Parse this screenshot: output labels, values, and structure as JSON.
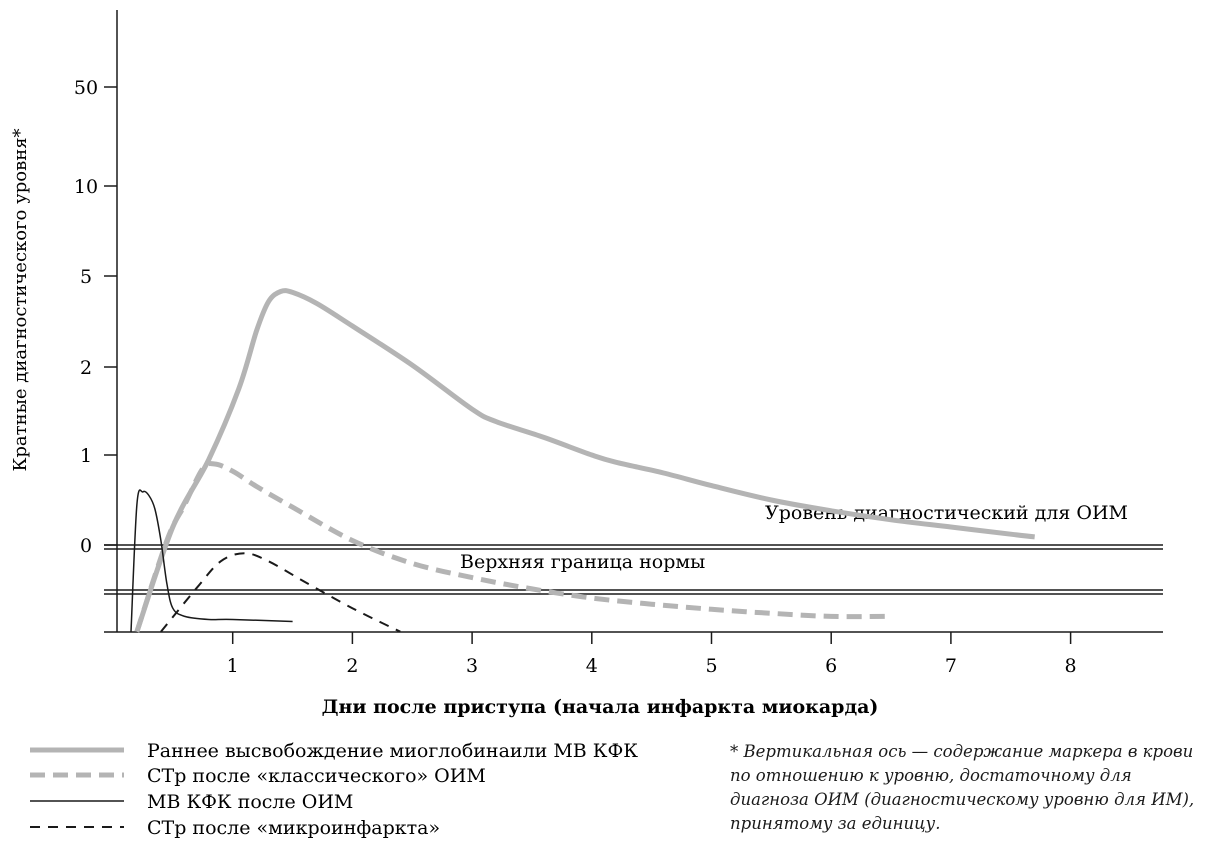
{
  "chart_data": {
    "type": "line",
    "xlabel": "Дни после приступа (начала инфаркта миокарда)",
    "ylabel": "Кратные диагностического уровня*",
    "x_ticks": [
      1,
      2,
      3,
      4,
      5,
      6,
      7,
      8
    ],
    "y_ticks": [
      "0",
      "1",
      "2",
      "5",
      "10",
      "50"
    ],
    "xlim": [
      0,
      8.75
    ],
    "reference_lines": [
      {
        "name": "Уровень диагностический для ОИМ",
        "y": "0"
      },
      {
        "name": "Верхняя граница нормы",
        "y": "below 0"
      }
    ],
    "series": [
      {
        "name": "Раннее высвобождение миоглобинаили МВ КФК",
        "style": "thick-solid",
        "color": "#b4b4b4",
        "x": [
          0.2,
          0.5,
          0.8,
          1.05,
          1.2,
          1.3,
          1.4,
          1.5,
          1.7,
          2.0,
          2.5,
          3.0,
          3.2,
          3.6,
          4.0,
          4.2,
          4.6,
          5.0,
          5.5,
          6.0,
          6.5,
          7.0,
          7.5,
          7.7
        ],
        "y": [
          -0.85,
          0.2,
          0.95,
          1.75,
          2.4,
          2.72,
          2.83,
          2.82,
          2.7,
          2.45,
          2.02,
          1.52,
          1.38,
          1.2,
          1.0,
          0.92,
          0.8,
          0.66,
          0.5,
          0.38,
          0.28,
          0.2,
          0.12,
          0.09
        ]
      },
      {
        "name": "СТр после «классического» ОИМ",
        "style": "thick-dashed",
        "color": "#b4b4b4",
        "x": [
          0.2,
          0.45,
          0.6,
          0.75,
          0.85,
          1.0,
          1.2,
          1.5,
          2.0,
          2.5,
          3.0,
          3.5,
          4.0,
          4.5,
          5.0,
          5.5,
          6.0,
          6.5
        ],
        "y": [
          -0.85,
          0.05,
          0.45,
          0.85,
          0.9,
          0.82,
          0.65,
          0.42,
          0.05,
          -0.18,
          -0.32,
          -0.43,
          -0.52,
          -0.58,
          -0.63,
          -0.67,
          -0.7,
          -0.7
        ]
      },
      {
        "name": "МВ КФК после ОИМ",
        "style": "thin-solid",
        "color": "#1a1a1a",
        "x": [
          0.15,
          0.2,
          0.25,
          0.3,
          0.35,
          0.4,
          0.45,
          0.5,
          0.6,
          0.8,
          1.0,
          1.5
        ],
        "y": [
          -0.85,
          0.45,
          0.59,
          0.55,
          0.4,
          0.05,
          -0.38,
          -0.62,
          -0.7,
          -0.73,
          -0.73,
          -0.75
        ]
      },
      {
        "name": "СТр после «микроинфаркта»",
        "style": "thin-dashed",
        "color": "#1a1a1a",
        "x": [
          0.4,
          0.7,
          0.9,
          1.1,
          1.3,
          1.6,
          2.0,
          2.4
        ],
        "y": [
          -0.85,
          -0.42,
          -0.16,
          -0.08,
          -0.16,
          -0.36,
          -0.62,
          -0.85
        ]
      }
    ]
  },
  "annotations": {
    "diagnostic_level": "Уровень диагностический для ОИМ",
    "upper_normal": "Верхняя граница нормы"
  },
  "legend": {
    "items": [
      {
        "label": "Раннее высвобождение миоглобинаили МВ КФК",
        "style": "thick-solid"
      },
      {
        "label": "СТр после «классического» ОИМ",
        "style": "thick-dashed"
      },
      {
        "label": "МВ КФК после ОИМ",
        "style": "thin-solid"
      },
      {
        "label": "СТр после «микроинфаркта»",
        "style": "thin-dashed"
      }
    ]
  },
  "footnote": "* Вертикальная ось — содержание маркера в крови по отношению к уровню, достаточному для диагноза ОИМ (диагностическому уровню для ИМ), принятому за единицу."
}
